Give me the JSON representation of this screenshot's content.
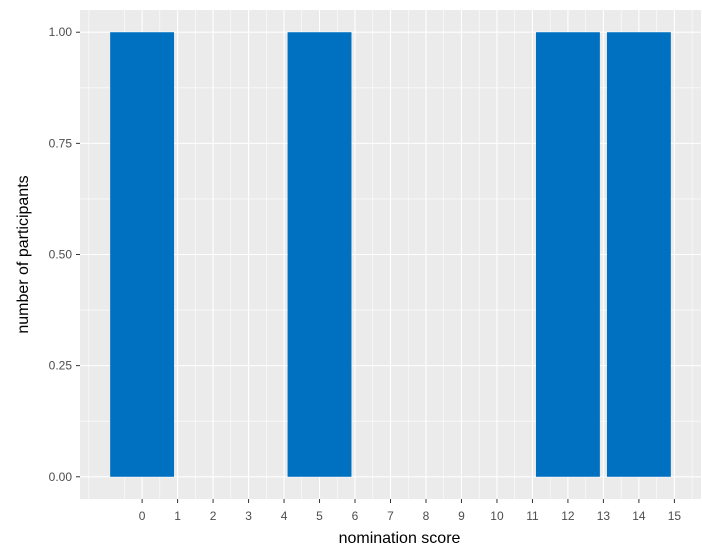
{
  "chart_data": {
    "type": "bar",
    "title": "",
    "xlabel": "nomination score",
    "ylabel": "number of participants",
    "xlim": [
      -1,
      16
    ],
    "ylim": [
      0,
      1
    ],
    "x_ticks": [
      0,
      1,
      2,
      3,
      4,
      5,
      6,
      7,
      8,
      9,
      10,
      11,
      12,
      13,
      14,
      15
    ],
    "y_ticks": [
      "0.00",
      "0.25",
      "0.50",
      "0.75",
      "1.00"
    ],
    "bars": [
      {
        "x_start": -0.9,
        "x_end": 0.9,
        "value": 1
      },
      {
        "x_start": 4.1,
        "x_end": 5.9,
        "value": 1
      },
      {
        "x_start": 11.1,
        "x_end": 12.9,
        "value": 1
      },
      {
        "x_start": 13.1,
        "x_end": 14.9,
        "value": 1
      }
    ],
    "bar_color": "#0070c0",
    "panel_background": "#ebebeb",
    "grid_color": "#ffffff",
    "grid": true,
    "legend": "none"
  }
}
